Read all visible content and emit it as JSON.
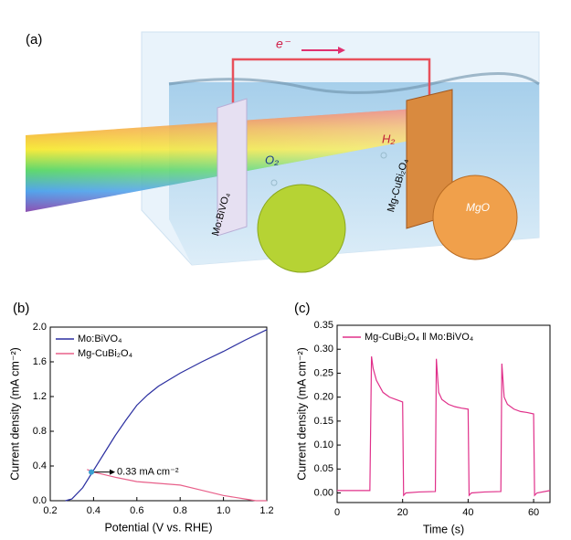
{
  "panel_a": {
    "label": "(a)",
    "electron": "e⁻",
    "o2": "O₂",
    "h2": "H₂",
    "anode": "Mo:BiVO₄",
    "cathode": "Mg-CuBi₂O₄",
    "mgo": "MgO"
  },
  "chart_data": [
    {
      "type": "line",
      "panel": "(b)",
      "xlabel": "Potential (V vs. RHE)",
      "ylabel": "Current density (mA cm⁻²)",
      "xlim": [
        0.2,
        1.2
      ],
      "xticks": [
        0.2,
        0.4,
        0.6,
        0.8,
        {
          "value": 1.0,
          "label": "1.0"
        },
        1.2
      ],
      "ylim": [
        0,
        2.0
      ],
      "yticks": [
        {
          "value": 0,
          "label": "0.0"
        },
        0.4,
        0.8,
        1.2,
        1.6,
        {
          "value": 2.0,
          "label": "2.0"
        }
      ],
      "legend": "upper-left",
      "series": [
        {
          "name": "Mo:BiVO₄",
          "color": "#2b2fa0",
          "x": [
            0.27,
            0.3,
            0.35,
            0.4,
            0.45,
            0.5,
            0.55,
            0.6,
            0.65,
            0.7,
            0.8,
            0.9,
            1.0,
            1.1,
            1.2
          ],
          "values": [
            0,
            0.02,
            0.15,
            0.35,
            0.55,
            0.75,
            0.93,
            1.1,
            1.22,
            1.32,
            1.47,
            1.6,
            1.72,
            1.85,
            1.97
          ]
        },
        {
          "name": "Mg-CuBi₂O₄",
          "color": "#e8608a",
          "x": [
            0.37,
            0.4,
            0.5,
            0.6,
            0.7,
            0.8,
            0.9,
            1.0,
            1.1,
            1.15,
            1.2
          ],
          "values": [
            0.36,
            0.33,
            0.27,
            0.22,
            0.2,
            0.18,
            0.12,
            0.06,
            0.02,
            0,
            0
          ]
        }
      ],
      "annotation": {
        "text": "0.33 mA cm⁻²",
        "x": 0.39,
        "y": 0.33
      }
    },
    {
      "type": "line",
      "panel": "(c)",
      "xlabel": "Time (s)",
      "ylabel": "Current density (mA cm⁻²)",
      "xlim": [
        0,
        65
      ],
      "xticks": [
        0,
        20,
        40,
        60
      ],
      "ylim": [
        -0.02,
        0.35
      ],
      "yticks": [
        {
          "value": 0,
          "label": "0.00"
        },
        0.05,
        {
          "value": 0.1,
          "label": "0.10"
        },
        0.15,
        {
          "value": 0.2,
          "label": "0.20"
        },
        0.25,
        {
          "value": 0.3,
          "label": "0.30"
        },
        0.35
      ],
      "legend": "upper-left",
      "series": [
        {
          "name": "Mg-CuBi₂O₄ ‖ Mo:BiVO₄",
          "color": "#e0308a",
          "x": [
            0,
            5,
            10,
            10.5,
            11,
            12,
            14,
            16,
            18,
            20,
            20.3,
            21,
            25,
            30,
            30.3,
            31,
            32,
            34,
            36,
            38,
            40,
            40.3,
            41,
            45,
            50,
            50.3,
            51,
            52,
            54,
            56,
            58,
            60,
            60.3,
            61,
            65
          ],
          "values": [
            0.005,
            0.005,
            0.005,
            0.285,
            0.26,
            0.235,
            0.21,
            0.2,
            0.195,
            0.19,
            -0.005,
            0,
            0.002,
            0.003,
            0.28,
            0.21,
            0.195,
            0.185,
            0.18,
            0.177,
            0.175,
            -0.005,
            0,
            0.002,
            0.003,
            0.27,
            0.2,
            0.185,
            0.175,
            0.17,
            0.168,
            0.165,
            -0.005,
            0,
            0.005
          ]
        }
      ]
    }
  ]
}
